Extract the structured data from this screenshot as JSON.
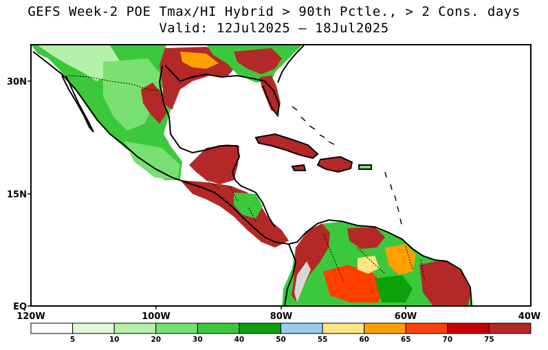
{
  "title_line1": "GEFS Week-2 POE Tmax/HI Hybrid > 90th Pctle., > 2 Cons. days",
  "title_line2": "Valid: 12Jul2025 – 18Jul2025",
  "lat_labels": [
    "30N",
    "15N",
    "EQ"
  ],
  "lon_labels": [
    "120W",
    "100W",
    "80W",
    "60W",
    "40W"
  ],
  "colorbar": {
    "labels": [
      "5",
      "10",
      "20",
      "30",
      "40",
      "50",
      "55",
      "60",
      "65",
      "70",
      "75"
    ],
    "colors": [
      "#ffffff",
      "#e0f8d8",
      "#b4f0a8",
      "#78e070",
      "#3cc83c",
      "#0ca00c",
      "#98cdf0",
      "#ffe682",
      "#ffa000",
      "#ff4000",
      "#c80000",
      "#b42828"
    ]
  }
}
